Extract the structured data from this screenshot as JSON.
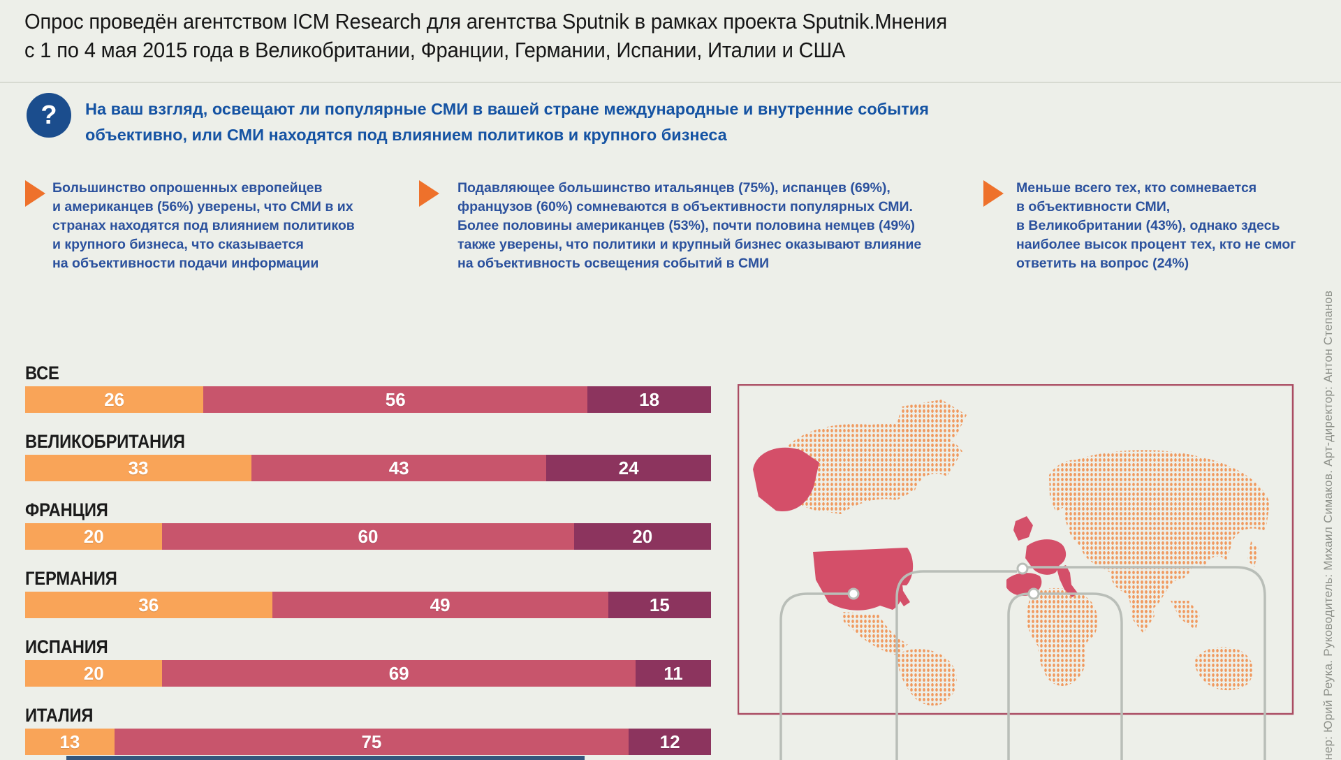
{
  "title": {
    "text": "Опрос проведён агентством ICM Research для агентства Sputnik в рамках проекта Sputnik.Мнения\nс 1 по 4 мая 2015 года в Великобритании, Франции, Германии, Испании, Италии и США"
  },
  "question": {
    "mark": "?",
    "text": "На ваш взгляд, освещают ли популярные СМИ в вашей стране международные и внутренние события\nобъективно, или СМИ находятся под влиянием политиков и крупного бизнеса"
  },
  "insights": [
    {
      "text": "Большинство опрошенных европейцев\nи американцев (56%) уверены, что СМИ в их\nстранах находятся под влиянием политиков\nи крупного бизнеса, что сказывается\nна объективности подачи информации"
    },
    {
      "text": "Подавляющее большинство итальянцев (75%), испанцев (69%),\nфранцузов (60%) сомневаются в объективности популярных СМИ.\nБолее половины американцев (53%), почти половина немцев (49%)\nтакже уверены, что политики и крупный бизнес оказывают влияние\nна объективность освещения событий в СМИ"
    },
    {
      "text": "Меньше всего тех, кто сомневается\nв объективности СМИ,\nв Великобритании (43%), однако здесь\nнаиболее высок процент тех, кто не смог\nответить на вопрос (24%)"
    }
  ],
  "chart_data": {
    "type": "bar",
    "orientation": "horizontal",
    "stacked": true,
    "unit": "percent",
    "xlim": [
      0,
      100
    ],
    "grid": false,
    "legend": "none (cut off below image)",
    "categories": [
      "ВСЕ",
      "ВЕЛИКОБРИТАНИЯ",
      "ФРАНЦИЯ",
      "ГЕРМАНИЯ",
      "ИСПАНИЯ",
      "ИТАЛИЯ"
    ],
    "series": [
      {
        "name": "answer-1",
        "color": "#f9a458",
        "values": [
          26,
          33,
          20,
          36,
          20,
          13
        ]
      },
      {
        "name": "answer-2",
        "color": "#c8556c",
        "values": [
          56,
          43,
          60,
          49,
          69,
          75
        ]
      },
      {
        "name": "answer-3",
        "color": "#8c345e",
        "values": [
          18,
          24,
          20,
          15,
          11,
          12
        ]
      }
    ]
  },
  "map": {
    "dot_color": "#f0995e",
    "highlight_color": "#d44f69",
    "border_color": "#aa4c62",
    "callout_color": "#b9beb8",
    "highlighted_regions": [
      "США",
      "Великобритания",
      "Франция",
      "Германия",
      "Испания",
      "Италия"
    ]
  },
  "credits": {
    "text": "нер: Юрий Реука. Руководитель: Михаил Симаков. Арт-директор: Антон Степанов"
  },
  "colors": {
    "background": "#edefe9",
    "question_blue": "#1553a3",
    "insight_blue": "#2b519d",
    "bullet_orange": "#ee712b",
    "badge_navy": "#1b4d8d"
  }
}
